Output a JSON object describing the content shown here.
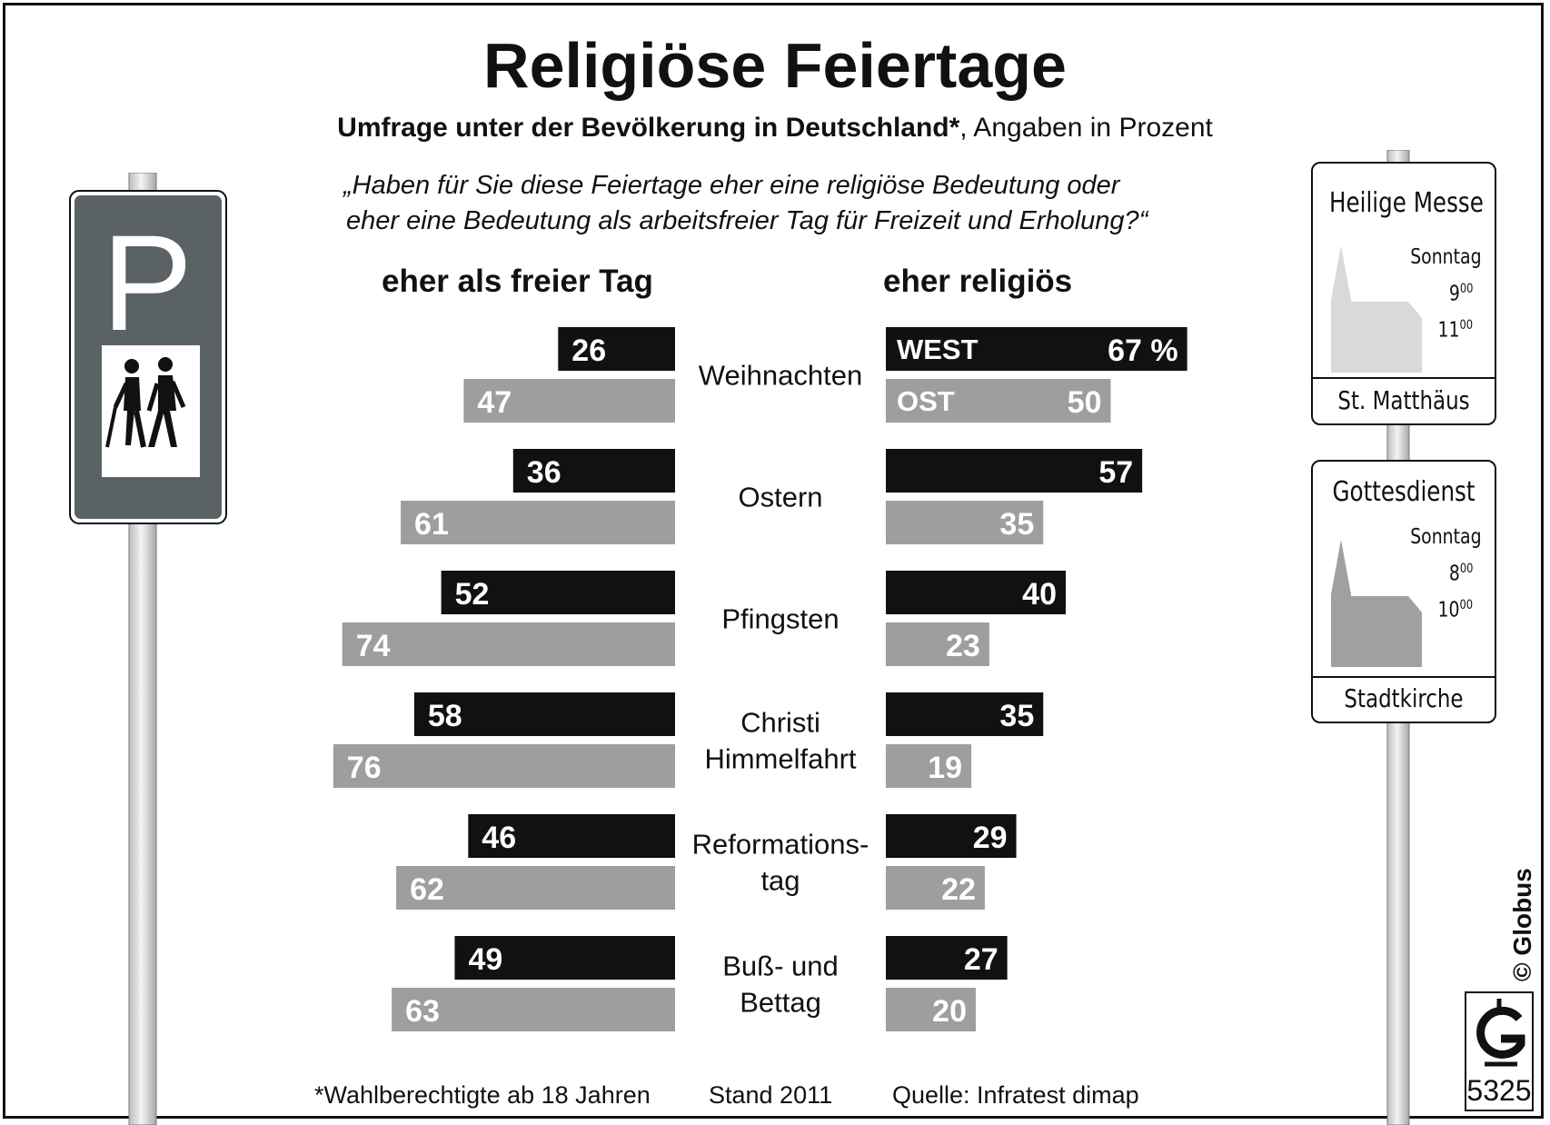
{
  "header": {
    "title": "Religiöse Feiertage",
    "subtitle_bold": "Umfrage unter der Bevölkerung in Deutschland*",
    "subtitle_rest": ", Angaben in Prozent",
    "question_line1": "„Haben für Sie diese Feiertage eher eine religiöse Bedeutung oder",
    "question_line2": "eher eine Bedeutung als arbeitsfreier Tag für Freizeit und Erholung?“"
  },
  "columns": {
    "left": "eher als freier Tag",
    "right": "eher religiös"
  },
  "chart_data": {
    "type": "bar",
    "title": "Religiöse Feiertage",
    "categories": [
      [
        "Weihnachten"
      ],
      [
        "Ostern"
      ],
      [
        "Pfingsten"
      ],
      [
        "Christi",
        "Himmelfahrt"
      ],
      [
        "Reformations-",
        "tag"
      ],
      [
        "Buß- und",
        "Bettag"
      ]
    ],
    "series": [
      {
        "name": "WEST",
        "group": "eher als freier Tag",
        "values": [
          26,
          36,
          52,
          58,
          46,
          49
        ],
        "color": "#111111"
      },
      {
        "name": "OST",
        "group": "eher als freier Tag",
        "values": [
          47,
          61,
          74,
          76,
          62,
          63
        ],
        "color": "#9e9e9e"
      },
      {
        "name": "WEST",
        "group": "eher religiös",
        "values": [
          67,
          57,
          40,
          35,
          29,
          27
        ],
        "color": "#111111"
      },
      {
        "name": "OST",
        "group": "eher religiös",
        "values": [
          50,
          35,
          23,
          19,
          22,
          20
        ],
        "color": "#9e9e9e"
      }
    ],
    "first_value_suffix": " %",
    "unit": "Prozent",
    "xlim": [
      0,
      100
    ]
  },
  "signs": {
    "parking_letter": "P",
    "sign1": {
      "title": "Heilige Messe",
      "day": "Sonntag",
      "t1_h": "9",
      "t1_m": "00",
      "t2_h": "11",
      "t2_m": "00",
      "name": "St. Matthäus"
    },
    "sign2": {
      "title": "Gottesdienst",
      "day": "Sonntag",
      "t1_h": "8",
      "t1_m": "00",
      "t2_h": "10",
      "t2_m": "00",
      "name": "Stadtkirche"
    }
  },
  "footer": {
    "note": "*Wahlberechtigte ab 18 Jahren",
    "stand": "Stand 2011",
    "source": "Quelle: Infratest dimap",
    "copyright": "© Globus",
    "number": "5325"
  },
  "colors": {
    "west": "#111111",
    "ost": "#9e9e9e",
    "sign_dark": "#5b6266",
    "church_light": "#d9d9d9",
    "church_dark": "#a0a0a0"
  }
}
